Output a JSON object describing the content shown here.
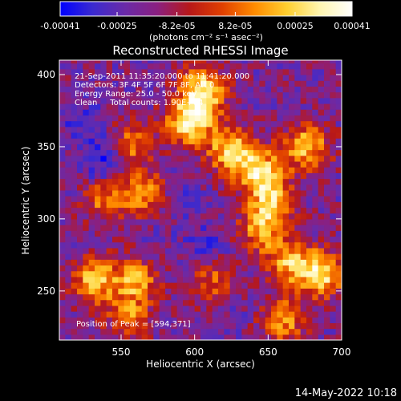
{
  "colorbar": {
    "ticks": [
      "-0.00041",
      "-0.00025",
      "-8.2e-05",
      "8.2e-05",
      "0.00025",
      "0.00041"
    ],
    "tick_values": [
      -0.00041,
      -0.00025,
      -8.2e-05,
      8.2e-05,
      0.00025,
      0.00041
    ],
    "range": [
      -0.00041,
      0.00041
    ],
    "units_label": "(photons cm⁻² s⁻¹ asec⁻²)"
  },
  "annotations": [
    "21-Sep-2011 11:35:20.000 to 11:41:20.000",
    "Detectors: 3F 4F 5F 6F 7F 8F, Att 0",
    "Energy Range: 25.0 - 50.0 keV",
    "Clean     Total counts: 1.90E+04"
  ],
  "peak_label": "Position of Peak = [594,371]",
  "footer_timestamp": "14-May-2022 10:18",
  "chart_data": {
    "type": "heatmap",
    "title": "Reconstructed RHESSI Image",
    "xlabel": "Heliocentric X (arcsec)",
    "ylabel": "Heliocentric Y (arcsec)",
    "xlim": [
      508,
      700
    ],
    "ylim": [
      216,
      410
    ],
    "xticks": [
      550,
      600,
      650,
      700
    ],
    "yticks": [
      250,
      300,
      350,
      400
    ],
    "peak": [
      594,
      371
    ],
    "colormap": [
      "#0000ff",
      "#3a2ad0",
      "#6a2aa8",
      "#8a2080",
      "#b81818",
      "#e04000",
      "#ff8c00",
      "#ffd030",
      "#fff6b0",
      "#ffffff"
    ],
    "bright_regions": [
      {
        "x": 597,
        "y": 368,
        "value": 0.00041
      },
      {
        "x": 606,
        "y": 390,
        "value": 0.00035
      },
      {
        "x": 625,
        "y": 347,
        "value": 0.0003
      },
      {
        "x": 645,
        "y": 333,
        "value": 0.00028
      },
      {
        "x": 676,
        "y": 350,
        "value": 0.00027
      },
      {
        "x": 652,
        "y": 312,
        "value": 0.00022
      },
      {
        "x": 532,
        "y": 258,
        "value": 0.00026
      },
      {
        "x": 560,
        "y": 258,
        "value": 0.00021
      },
      {
        "x": 687,
        "y": 262,
        "value": 0.00031
      },
      {
        "x": 665,
        "y": 270,
        "value": 0.00024
      },
      {
        "x": 540,
        "y": 315,
        "value": 0.00016
      },
      {
        "x": 568,
        "y": 318,
        "value": 0.0002
      },
      {
        "x": 558,
        "y": 352,
        "value": 0.00014
      },
      {
        "x": 646,
        "y": 292,
        "value": 0.00018
      },
      {
        "x": 612,
        "y": 256,
        "value": 0.0001
      },
      {
        "x": 660,
        "y": 230,
        "value": 0.00018
      },
      {
        "x": 555,
        "y": 232,
        "value": 0.00012
      }
    ],
    "dark_regions": [
      {
        "x": 538,
        "y": 338,
        "value": -0.00041
      },
      {
        "x": 585,
        "y": 318,
        "value": -0.0003
      },
      {
        "x": 525,
        "y": 366,
        "value": -0.0003
      },
      {
        "x": 608,
        "y": 282,
        "value": -0.00028
      },
      {
        "x": 628,
        "y": 240,
        "value": -0.00022
      },
      {
        "x": 575,
        "y": 287,
        "value": -0.00022
      }
    ]
  }
}
